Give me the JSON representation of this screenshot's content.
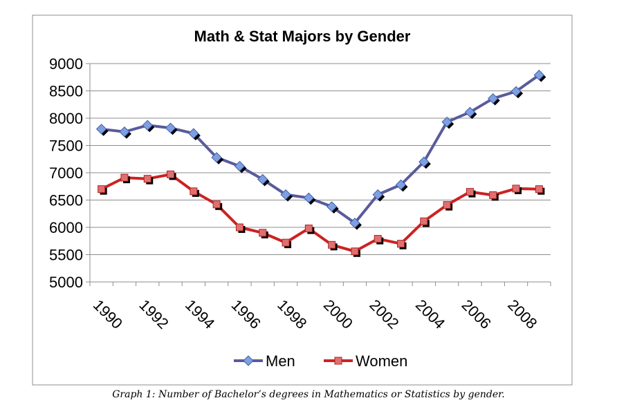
{
  "chart_data": {
    "type": "line",
    "title": "Math & Stat Majors by Gender",
    "x": [
      1990,
      1991,
      1992,
      1993,
      1994,
      1995,
      1996,
      1997,
      1998,
      1999,
      2000,
      2001,
      2002,
      2003,
      2004,
      2005,
      2006,
      2007,
      2008,
      2009
    ],
    "x_tick_labels": [
      "1990",
      "1992",
      "1994",
      "1996",
      "1998",
      "2000",
      "2002",
      "2004",
      "2006",
      "2008"
    ],
    "ylim": [
      5000,
      9000
    ],
    "y_ticks": [
      5000,
      5500,
      6000,
      6500,
      7000,
      7500,
      8000,
      8500,
      9000
    ],
    "grid": true,
    "legend_position": "bottom",
    "series": [
      {
        "name": "Men",
        "color": "#5a5a9c",
        "marker": "diamond",
        "marker_color": "#7f9fe0",
        "values": [
          7800,
          7750,
          7870,
          7820,
          7720,
          7280,
          7120,
          6880,
          6600,
          6540,
          6380,
          6080,
          6600,
          6780,
          7200,
          7930,
          8110,
          8360,
          8490,
          8790
        ]
      },
      {
        "name": "Women",
        "color": "#cc2222",
        "marker": "square",
        "marker_color": "#e07070",
        "values": [
          6700,
          6910,
          6890,
          6970,
          6660,
          6420,
          6000,
          5900,
          5720,
          5980,
          5680,
          5560,
          5790,
          5700,
          6110,
          6410,
          6650,
          6590,
          6710,
          6700
        ]
      }
    ]
  },
  "caption": "Graph 1: Number of Bachelor’s degrees in Mathematics or Statistics by gender."
}
